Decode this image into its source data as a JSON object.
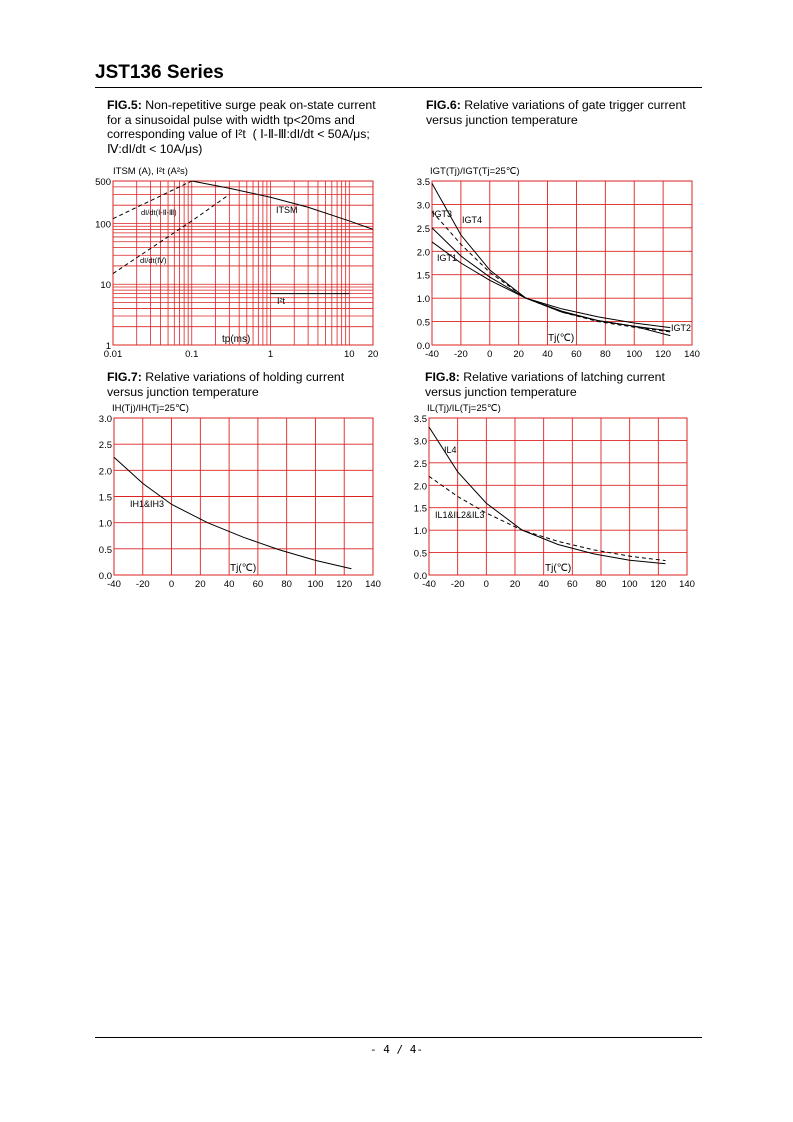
{
  "header": {
    "title": "JST136 Series"
  },
  "footer": {
    "page": "- 4 / 4-"
  },
  "figures": {
    "fig5": {
      "label": "FIG.5:",
      "lines": [
        " Non-repetitive surge peak on-state current",
        "for a sinusoidal pulse with width tp<20ms and",
        "corresponding value of I²t  ( Ⅰ-Ⅱ-Ⅲ:dI/dt < 50A/μs;",
        "Ⅳ:dI/dt < 10A/μs)"
      ]
    },
    "fig6": {
      "label": "FIG.6:",
      "lines": [
        " Relative variations of gate trigger current",
        "versus junction temperature"
      ]
    },
    "fig7": {
      "label": "FIG.7:",
      "lines": [
        " Relative variations of holding current",
        "versus junction temperature"
      ]
    },
    "fig8": {
      "label": "FIG.8:",
      "lines": [
        " Relative variations of latching current",
        "versus junction temperature"
      ]
    }
  },
  "chart_data": [
    {
      "id": "fig5",
      "type": "line",
      "xscale": "log",
      "yscale": "log",
      "xlim": [
        0.01,
        20
      ],
      "ylim": [
        1,
        500
      ],
      "xticks": [
        "0.01",
        "0.1",
        "1",
        "10",
        "20"
      ],
      "yticks": [
        "1",
        "10",
        "100",
        "500"
      ],
      "ylabel": "ITSM (A), I²t (A²s)",
      "xlabel": "tp(ms)",
      "grid": true,
      "series": [
        {
          "name": "ITSM",
          "style": "solid",
          "x": [
            0.1,
            0.3,
            1,
            3,
            10,
            20
          ],
          "y": [
            500,
            380,
            270,
            185,
            110,
            80
          ]
        },
        {
          "name": "I²t",
          "style": "solid",
          "x": [
            1,
            10
          ],
          "y": [
            7,
            7
          ]
        },
        {
          "name": "dI/dt(Ⅰ-Ⅱ-Ⅲ)",
          "style": "dashed",
          "x": [
            0.01,
            0.1
          ],
          "y": [
            120,
            500
          ]
        },
        {
          "name": "dI/dt(Ⅳ)",
          "style": "dashed",
          "x": [
            0.01,
            0.1,
            0.3
          ],
          "y": [
            15,
            110,
            300
          ]
        }
      ]
    },
    {
      "id": "fig6",
      "type": "line",
      "xlim": [
        -40,
        140
      ],
      "ylim": [
        0,
        3.5
      ],
      "xticks": [
        "-40",
        "-20",
        "0",
        "20",
        "40",
        "60",
        "80",
        "100",
        "120",
        "140"
      ],
      "yticks": [
        "0.0",
        "0.5",
        "1.0",
        "1.5",
        "2.0",
        "2.5",
        "3.0",
        "3.5"
      ],
      "ylabel": "IGT(Tj)/IGT(Tj=25℃)",
      "xlabel": "Tj(℃)",
      "grid": true,
      "series": [
        {
          "name": "IGT3",
          "style": "solid",
          "x": [
            -40,
            -20,
            0,
            25,
            50,
            75,
            100,
            125
          ],
          "y": [
            3.45,
            2.35,
            1.6,
            1.0,
            0.7,
            0.52,
            0.4,
            0.3
          ]
        },
        {
          "name": "IGT4",
          "style": "dashed",
          "x": [
            -40,
            -20,
            0,
            25,
            50,
            75,
            100,
            125
          ],
          "y": [
            2.85,
            2.15,
            1.55,
            1.0,
            0.7,
            0.5,
            0.38,
            0.28
          ]
        },
        {
          "name": "IGT1",
          "style": "solid",
          "x": [
            -40,
            -20,
            0,
            25,
            50,
            75,
            100,
            125
          ],
          "y": [
            2.2,
            1.75,
            1.38,
            1.0,
            0.72,
            0.52,
            0.4,
            0.2
          ]
        },
        {
          "name": "IGT2",
          "style": "solid",
          "x": [
            -40,
            -20,
            0,
            25,
            50,
            75,
            100,
            125
          ],
          "y": [
            2.5,
            1.9,
            1.45,
            1.0,
            0.77,
            0.6,
            0.47,
            0.37
          ]
        }
      ]
    },
    {
      "id": "fig7",
      "type": "line",
      "xlim": [
        -40,
        140
      ],
      "ylim": [
        0,
        3.0
      ],
      "xticks": [
        "-40",
        "-20",
        "0",
        "20",
        "40",
        "60",
        "80",
        "100",
        "120",
        "140"
      ],
      "yticks": [
        "0.0",
        "0.5",
        "1.0",
        "1.5",
        "2.0",
        "2.5",
        "3.0"
      ],
      "ylabel": "IH(Tj)/IH(Tj=25℃)",
      "xlabel": "Tj(℃)",
      "grid": true,
      "series": [
        {
          "name": "IH1&IH3",
          "style": "solid",
          "x": [
            -40,
            -20,
            0,
            25,
            50,
            75,
            100,
            125
          ],
          "y": [
            2.25,
            1.75,
            1.35,
            1.0,
            0.72,
            0.48,
            0.28,
            0.12
          ]
        }
      ]
    },
    {
      "id": "fig8",
      "type": "line",
      "xlim": [
        -40,
        140
      ],
      "ylim": [
        0,
        3.5
      ],
      "xticks": [
        "-40",
        "-20",
        "0",
        "20",
        "40",
        "60",
        "80",
        "100",
        "120",
        "140"
      ],
      "yticks": [
        "0.0",
        "0.5",
        "1.0",
        "1.5",
        "2.0",
        "2.5",
        "3.0",
        "3.5"
      ],
      "ylabel": "IL(Tj)/IL(Tj=25℃)",
      "xlabel": "Tj(℃)",
      "grid": true,
      "series": [
        {
          "name": "IL4",
          "style": "solid",
          "x": [
            -40,
            -20,
            0,
            25,
            50,
            75,
            100,
            125
          ],
          "y": [
            3.3,
            2.3,
            1.6,
            1.0,
            0.68,
            0.47,
            0.33,
            0.25
          ]
        },
        {
          "name": "IL1&IL2&IL3",
          "style": "dashed",
          "x": [
            -40,
            -20,
            0,
            25,
            50,
            75,
            100,
            125
          ],
          "y": [
            2.2,
            1.75,
            1.38,
            1.0,
            0.75,
            0.56,
            0.42,
            0.32
          ]
        }
      ]
    }
  ]
}
